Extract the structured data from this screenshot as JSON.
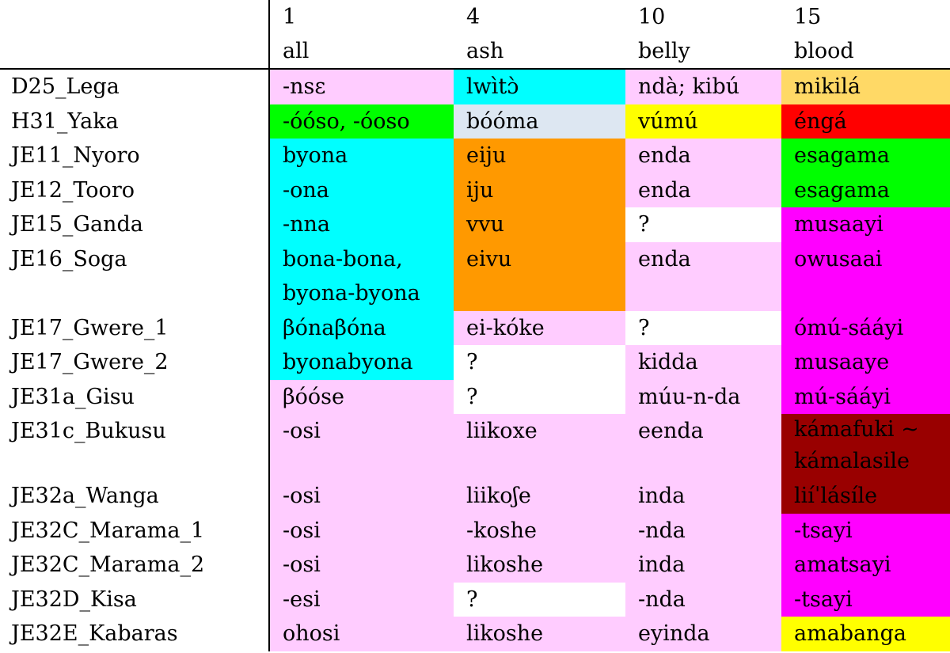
{
  "table": {
    "headers": {
      "numbers": [
        "1",
        "4",
        "10",
        "15"
      ],
      "words": [
        "all",
        "ash",
        "belly",
        "blood"
      ]
    },
    "colors": {
      "pink": "#ffccff",
      "cyan": "#00ffff",
      "light_orange": "#ffd966",
      "green": "#00ff00",
      "light_blue": "#dde7f2",
      "yellow": "#ffff00",
      "red": "#ff0000",
      "orange": "#ff9900",
      "white": "#ffffff",
      "magenta": "#ff00ff",
      "maroon": "#990000"
    },
    "rows": [
      {
        "lang": "D25_Lega",
        "all": "-nsɛ",
        "ash": "lwìtɔ̀",
        "belly": "ndà; kibú",
        "blood": "mikilá"
      },
      {
        "lang": "H31_Yaka",
        "all": "-óóso, -óoso",
        "ash": "bóóma",
        "belly": "vúmú",
        "blood": "éngá"
      },
      {
        "lang": "JE11_Nyoro",
        "all": "byona",
        "ash": "eiju",
        "belly": "enda",
        "blood": "esagama"
      },
      {
        "lang": "JE12_Tooro",
        "all": "-ona",
        "ash": "iju",
        "belly": "enda",
        "blood": "esagama"
      },
      {
        "lang": "JE15_Ganda",
        "all": "-nna",
        "ash": "vvu",
        "belly": "?",
        "blood": "musaayi"
      },
      {
        "lang": "JE16_Soga",
        "all_1": "bona-bona,",
        "all_2": "byona-byona",
        "ash": "eivu",
        "belly": "enda",
        "blood": "owusaai"
      },
      {
        "lang": "JE17_Gwere_1",
        "all": "βónaβóna",
        "ash": "ei-kóke",
        "belly": "?",
        "blood": "ómú-sááyi"
      },
      {
        "lang": "JE17_Gwere_2",
        "all": "byonabyona",
        "ash": "?",
        "belly": "kidda",
        "blood": "musaaye"
      },
      {
        "lang": "JE31a_Gisu",
        "all": "βóóse",
        "ash": "?",
        "belly": "múu-n-da",
        "blood": "mú-sááyi"
      },
      {
        "lang": "JE31c_Bukusu",
        "all": "-osi",
        "ash": "liikoxe",
        "belly": "eenda",
        "blood_1": "kámafuki ~",
        "blood_2": "kámalasile"
      },
      {
        "lang": "JE32a_Wanga",
        "all": "-osi",
        "ash": "liikoʃe",
        "belly": "inda",
        "blood": "liíˈlásíle"
      },
      {
        "lang": "JE32C_Marama_1",
        "all": "-osi",
        "ash": "-koshe",
        "belly": "-nda",
        "blood": "-tsayi"
      },
      {
        "lang": "JE32C_Marama_2",
        "all": "-osi",
        "ash": "likoshe",
        "belly": "inda",
        "blood": "amatsayi"
      },
      {
        "lang": "JE32D_Kisa",
        "all": "-esi",
        "ash": "?",
        "belly": "-nda",
        "blood": "-tsayi"
      },
      {
        "lang": "JE32E_Kabaras",
        "all": "ohosi",
        "ash": "likoshe",
        "belly": "eyinda",
        "blood": "amabanga"
      }
    ]
  }
}
